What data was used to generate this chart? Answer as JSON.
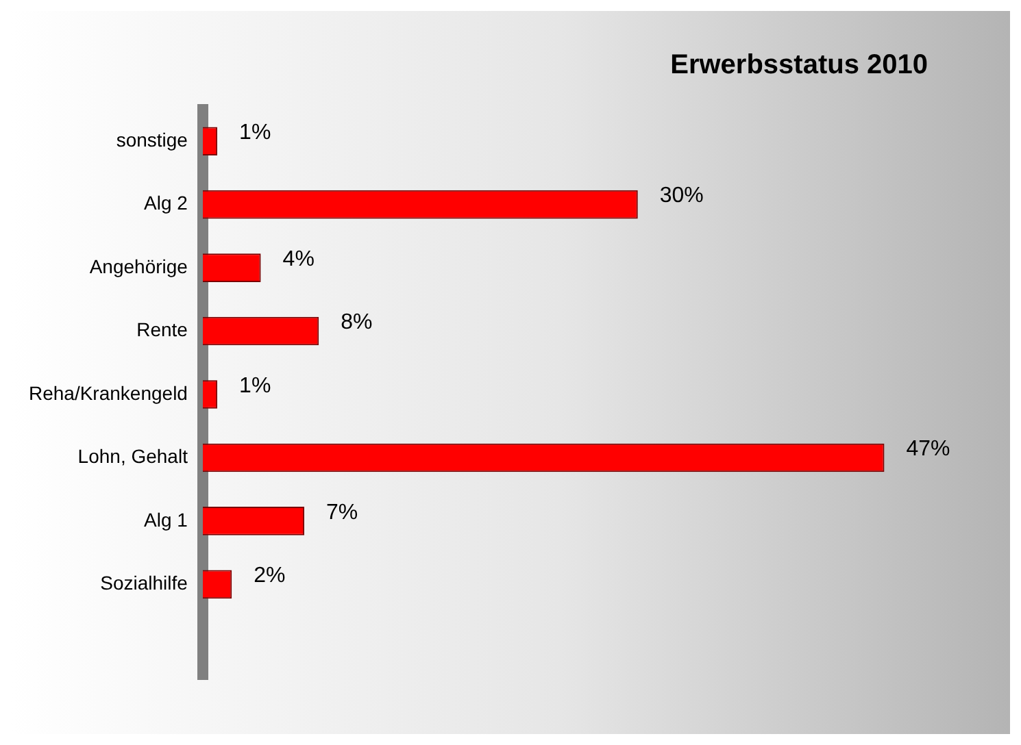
{
  "chart_data": {
    "type": "bar",
    "orientation": "horizontal",
    "title": "Erwerbsstatus 2010",
    "categories": [
      "sonstige",
      "Alg 2",
      "Angehörige",
      "Rente",
      "Reha/Krankengeld",
      "Lohn, Gehalt",
      "Alg 1",
      "Sozialhilfe",
      null
    ],
    "values": [
      1,
      30,
      4,
      8,
      1,
      47,
      7,
      2,
      null
    ],
    "value_labels": [
      "1%",
      "30%",
      "4%",
      "8%",
      "1%",
      "47%",
      "7%",
      "2%",
      null
    ],
    "color": "#ff0000",
    "tick_labels": "y",
    "grid": false,
    "legend": false
  }
}
